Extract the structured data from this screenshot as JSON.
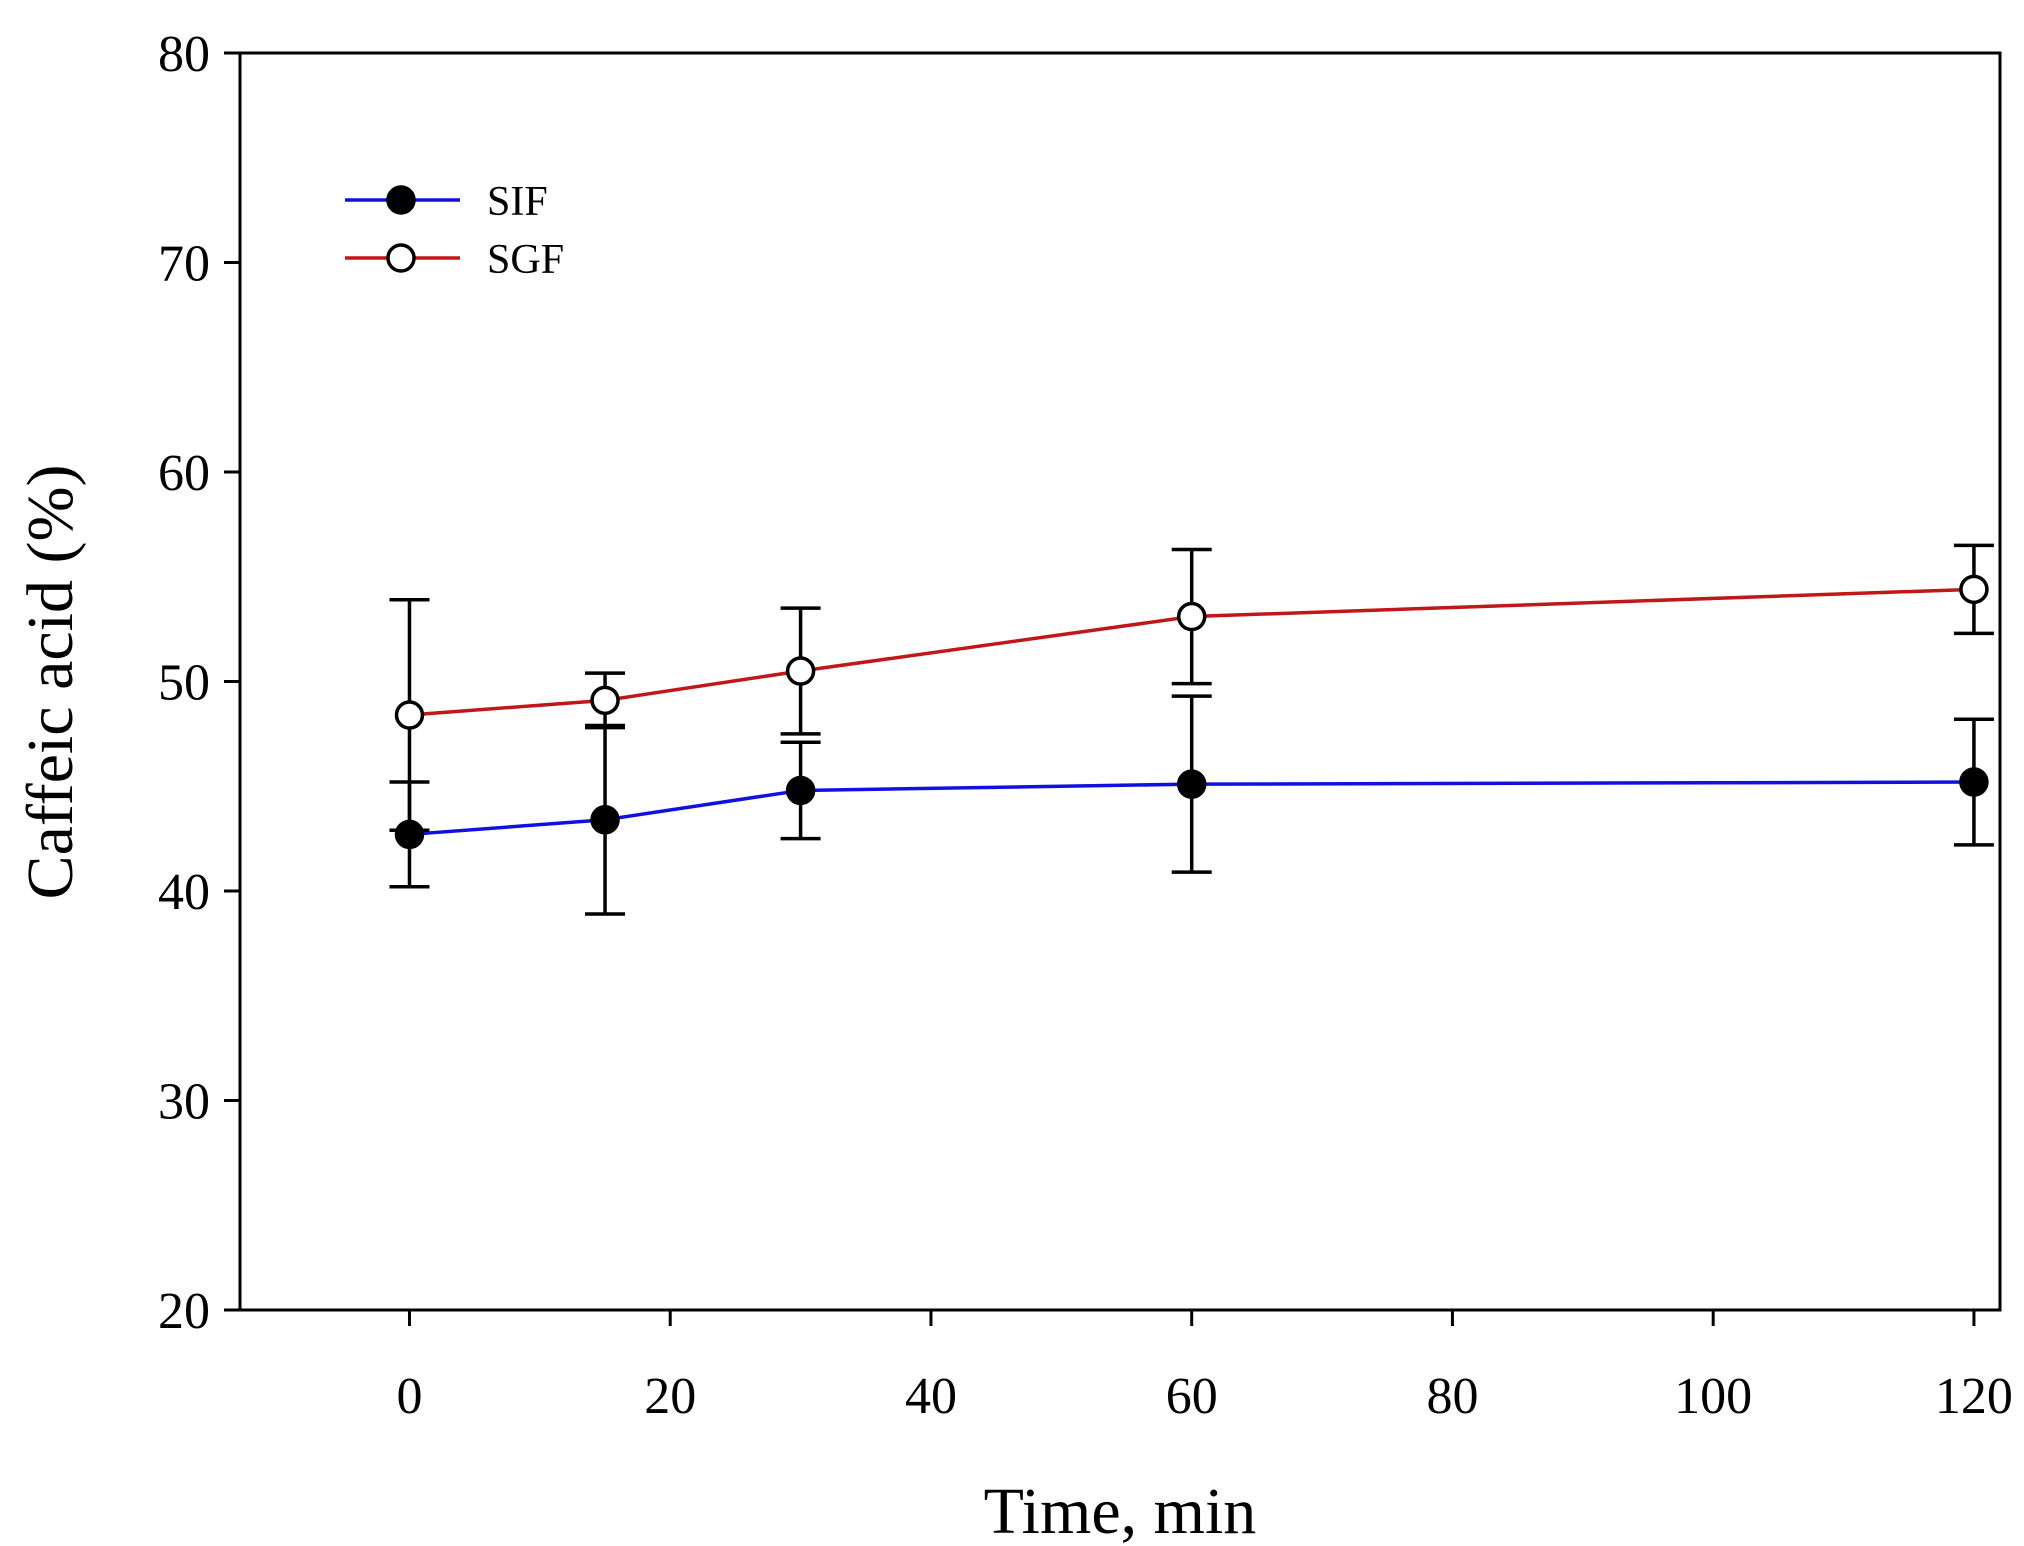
{
  "chart_data": {
    "type": "line",
    "title": "",
    "xlabel": "Time, min",
    "ylabel": "Caffeic acid (%)",
    "xlim": [
      -13,
      122
    ],
    "ylim": [
      20,
      80
    ],
    "xticks": [
      0,
      20,
      40,
      60,
      80,
      100,
      120
    ],
    "yticks": [
      20,
      30,
      40,
      50,
      60,
      70,
      80
    ],
    "grid": false,
    "legend_position": "top-left",
    "series": [
      {
        "name": "SIF",
        "color": "#1010e0",
        "marker": "filled-circle",
        "x": [
          0,
          15,
          30,
          60,
          120
        ],
        "y": [
          42.7,
          43.4,
          44.8,
          45.1,
          45.2
        ],
        "error": [
          2.5,
          4.5,
          2.3,
          4.2,
          3.0
        ]
      },
      {
        "name": "SGF",
        "color": "#c01818",
        "marker": "open-circle",
        "x": [
          0,
          15,
          30,
          60,
          120
        ],
        "y": [
          48.4,
          49.1,
          50.5,
          53.1,
          54.4
        ],
        "error": [
          5.5,
          1.3,
          3.0,
          3.2,
          2.1
        ]
      }
    ]
  }
}
